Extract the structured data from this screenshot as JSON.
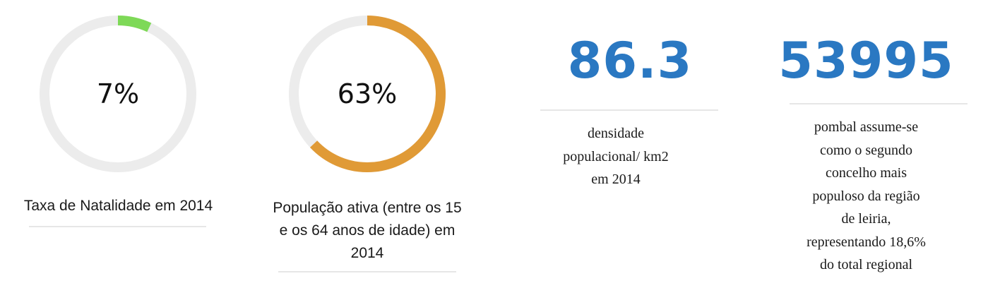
{
  "stats": [
    {
      "type": "ring",
      "percent": 7,
      "value_label": "7%",
      "color": "#7ed957",
      "track_color": "#ececec",
      "caption": "Taxa de Natalidade em 2014"
    },
    {
      "type": "ring",
      "percent": 63,
      "value_label": "63%",
      "color": "#e09a36",
      "track_color": "#ececec",
      "caption_lines": [
        "População ativa (entre os 15",
        "e os 64 anos de idade) em",
        "2014"
      ]
    },
    {
      "type": "number",
      "value": "86.3",
      "color": "#2a78c2",
      "description_lines": [
        "densidade",
        "populacional/ km2",
        "em 2014"
      ]
    },
    {
      "type": "number",
      "value": "53995",
      "color": "#2a78c2",
      "description_lines": [
        "pombal assume-se",
        "como o segundo",
        "concelho mais",
        "populoso da região",
        "de leiria,",
        "representando 18,6%",
        "do total regional"
      ]
    }
  ]
}
